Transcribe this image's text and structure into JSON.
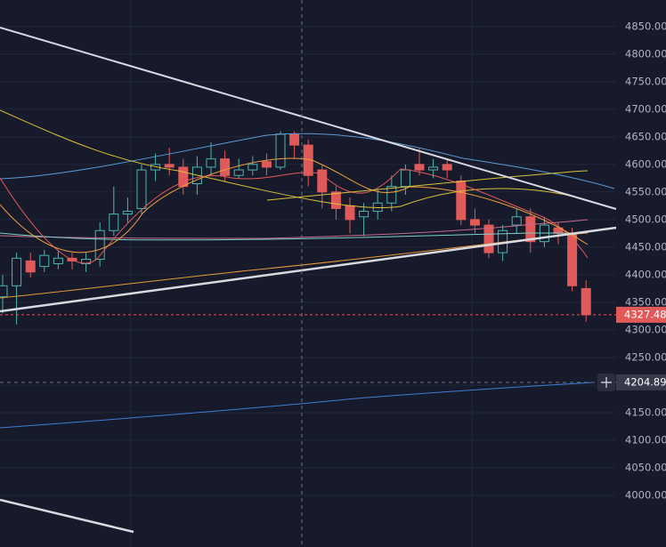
{
  "chart_data": {
    "type": "candlestick",
    "ylim": [
      3906.5,
      4898
    ],
    "yticks": [
      {
        "value": 4000,
        "label": "4000.00"
      },
      {
        "value": 4050,
        "label": "4050.00"
      },
      {
        "value": 4100,
        "label": "4100.00"
      },
      {
        "value": 4150,
        "label": "4150.00"
      },
      {
        "value": 4200,
        "label": "4200.00"
      },
      {
        "value": 4250,
        "label": "4250.00"
      },
      {
        "value": 4300,
        "label": "4300.00"
      },
      {
        "value": 4350,
        "label": "4350.00"
      },
      {
        "value": 4400,
        "label": "4400.00"
      },
      {
        "value": 4450,
        "label": "4450.00"
      },
      {
        "value": 4500,
        "label": "4500.00"
      },
      {
        "value": 4550,
        "label": "4550.00"
      },
      {
        "value": 4600,
        "label": "4600.00"
      },
      {
        "value": 4650,
        "label": "4650.00"
      },
      {
        "value": 4700,
        "label": "4700.00"
      },
      {
        "value": 4750,
        "label": "4750.00"
      },
      {
        "value": 4800,
        "label": "4800.00"
      },
      {
        "value": 4850,
        "label": "4850.00"
      }
    ],
    "grid": true,
    "up_color": "#4db6ac",
    "down_color": "#e05a5a",
    "open": [
      4360,
      4380,
      4425,
      4415,
      4420,
      4430,
      4420,
      4428,
      4480,
      4510,
      4520,
      4590,
      4600,
      4595,
      4565,
      4595,
      4610,
      4580,
      4590,
      4605,
      4595,
      4655,
      4635,
      4590,
      4550,
      4525,
      4505,
      4515,
      4530,
      4560,
      4600,
      4590,
      4600,
      4570,
      4500,
      4490,
      4440,
      4490,
      4505,
      4460,
      4485,
      4475,
      4375
    ],
    "high": [
      4400,
      4440,
      4440,
      4445,
      4445,
      4440,
      4440,
      4495,
      4560,
      4540,
      4600,
      4620,
      4630,
      4610,
      4615,
      4640,
      4625,
      4610,
      4615,
      4620,
      4660,
      4660,
      4645,
      4600,
      4560,
      4540,
      4530,
      4555,
      4580,
      4600,
      4630,
      4610,
      4610,
      4580,
      4520,
      4500,
      4490,
      4520,
      4520,
      4505,
      4495,
      4485,
      4390
    ],
    "low": [
      4330,
      4310,
      4395,
      4405,
      4410,
      4410,
      4405,
      4415,
      4470,
      4495,
      4510,
      4570,
      4580,
      4545,
      4545,
      4580,
      4570,
      4575,
      4580,
      4580,
      4590,
      4610,
      4560,
      4520,
      4500,
      4475,
      4470,
      4500,
      4515,
      4545,
      4580,
      4575,
      4575,
      4490,
      4475,
      4430,
      4425,
      4475,
      4440,
      4450,
      4455,
      4370,
      4315
    ],
    "close": [
      4380,
      4430,
      4405,
      4435,
      4430,
      4425,
      4428,
      4480,
      4510,
      4515,
      4590,
      4600,
      4595,
      4560,
      4595,
      4610,
      4580,
      4590,
      4600,
      4595,
      4655,
      4635,
      4580,
      4550,
      4520,
      4500,
      4515,
      4530,
      4560,
      4590,
      4590,
      4595,
      4590,
      4500,
      4490,
      4440,
      4480,
      4505,
      4460,
      4490,
      4475,
      4380,
      4327.48
    ],
    "last_price": 4327.48,
    "crosshair_price": 4204.89
  }
}
